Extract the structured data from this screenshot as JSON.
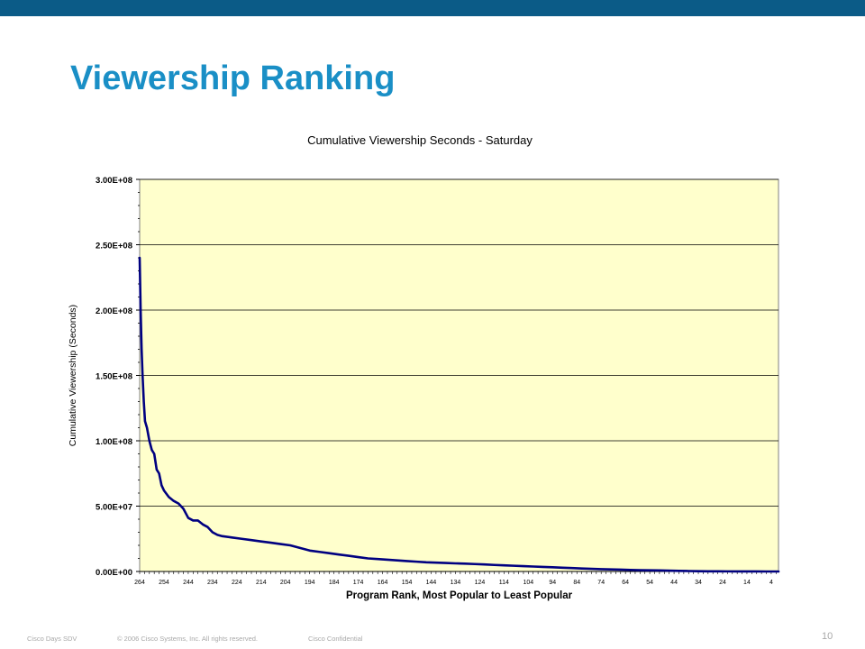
{
  "slide": {
    "title": "Viewership Ranking"
  },
  "footer": {
    "left": "Cisco Days SDV",
    "copyright": "© 2006 Cisco Systems, Inc. All rights reserved.",
    "confidential": "Cisco Confidential",
    "page_number": "10"
  },
  "colors": {
    "top_bar": "#0b5b87",
    "title": "#1a8fc6",
    "plot_background": "#ffffcc",
    "series_line": "#000080",
    "gridline": "#000000"
  },
  "chart_data": {
    "type": "line",
    "title": "Cumulative Viewership Seconds - Saturday",
    "xlabel": "Program Rank, Most Popular to Least Popular",
    "ylabel": "Cumulative Viewership (Seconds)",
    "ylim": [
      0,
      300000000
    ],
    "yticks": [
      "0.00E+00",
      "5.00E+07",
      "1.00E+08",
      "1.50E+08",
      "2.00E+08",
      "2.50E+08",
      "3.00E+08"
    ],
    "xlim": [
      264,
      1
    ],
    "xtick_labels": [
      "264",
      "254",
      "244",
      "234",
      "224",
      "214",
      "204",
      "194",
      "184",
      "174",
      "164",
      "154",
      "144",
      "134",
      "124",
      "114",
      "104",
      "94",
      "84",
      "74",
      "64",
      "54",
      "44",
      "34",
      "24",
      "14",
      "4"
    ],
    "grid": "horizontal",
    "legend": "none",
    "series": [
      {
        "x": [
          264,
          263.6,
          263.2,
          262.8,
          262.3,
          261.8,
          261,
          260,
          259,
          258,
          257,
          256,
          255,
          254,
          252,
          250,
          248,
          246,
          244,
          242,
          240,
          238,
          236,
          234,
          232,
          230,
          226,
          222,
          218,
          214,
          210,
          206,
          202,
          198,
          194,
          190,
          186,
          182,
          178,
          174,
          170,
          166,
          162,
          158,
          154,
          150,
          146,
          142,
          138,
          134,
          130,
          126,
          122,
          118,
          114,
          110,
          106,
          102,
          98,
          94,
          90,
          86,
          82,
          78,
          74,
          70,
          66,
          62,
          58,
          54,
          50,
          46,
          42,
          38,
          34,
          30,
          26,
          22,
          18,
          14,
          10,
          6,
          2,
          1
        ],
        "y": [
          240000000,
          200000000,
          170000000,
          150000000,
          130000000,
          115000000,
          110000000,
          100000000,
          93000000,
          90000000,
          78000000,
          75000000,
          66000000,
          62000000,
          57000000,
          54000000,
          52000000,
          48000000,
          41000000,
          39000000,
          39000000,
          36000000,
          34000000,
          30000000,
          28000000,
          27000000,
          26000000,
          25000000,
          24000000,
          23000000,
          22000000,
          21000000,
          20000000,
          18000000,
          16000000,
          15000000,
          14000000,
          13000000,
          12000000,
          11000000,
          10000000,
          9500000,
          9000000,
          8500000,
          8000000,
          7500000,
          7000000,
          6800000,
          6500000,
          6200000,
          6000000,
          5700000,
          5400000,
          5000000,
          4700000,
          4400000,
          4100000,
          3800000,
          3500000,
          3200000,
          2900000,
          2600000,
          2300000,
          2000000,
          1800000,
          1600000,
          1400000,
          1200000,
          1000000,
          900000,
          800000,
          650000,
          500000,
          350000,
          200000,
          150000,
          100000,
          80000,
          60000,
          40000,
          20000,
          10000,
          5000,
          0
        ]
      }
    ]
  }
}
